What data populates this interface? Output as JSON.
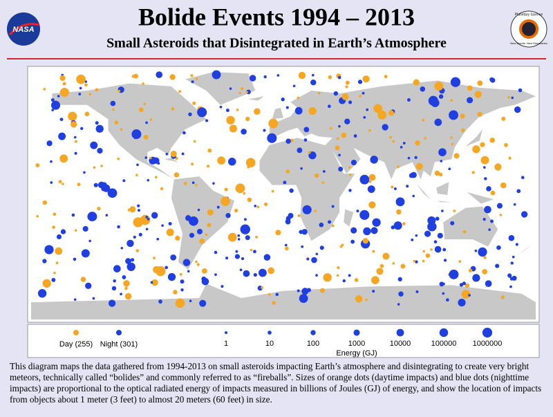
{
  "header": {
    "title": "Bolide Events 1994 – 2013",
    "subtitle": "Small Asteroids that Disintegrated in Earth’s Atmosphere",
    "left_logo": "NASA",
    "right_logo_top": "Planetary Science",
    "right_logo_bottom": "New Worlds, New Discoveries"
  },
  "legend": {
    "day": {
      "label": "Day (255)",
      "color": "#f5a623"
    },
    "night": {
      "label": "Night (301)",
      "color": "#1f3fe0"
    },
    "energy_label": "Energy (GJ)",
    "energy_ticks": [
      1,
      10,
      100,
      1000,
      10000,
      100000,
      1000000
    ]
  },
  "caption": "This diagram maps the data gathered from 1994-2013 on small asteroids impacting Earth’s atmosphere and disintegrating to create very bright meteors, technically called “bolides” and commonly referred to as “fireballs”.  Sizes of orange dots (daytime impacts) and blue dots (nighttime impacts) are proportional to the optical radiated energy of impacts measured in billions of Joules (GJ) of energy, and show the location of impacts from objects about 1 meter (3 feet) to almost 20 meters (60 feet) in size."
}
